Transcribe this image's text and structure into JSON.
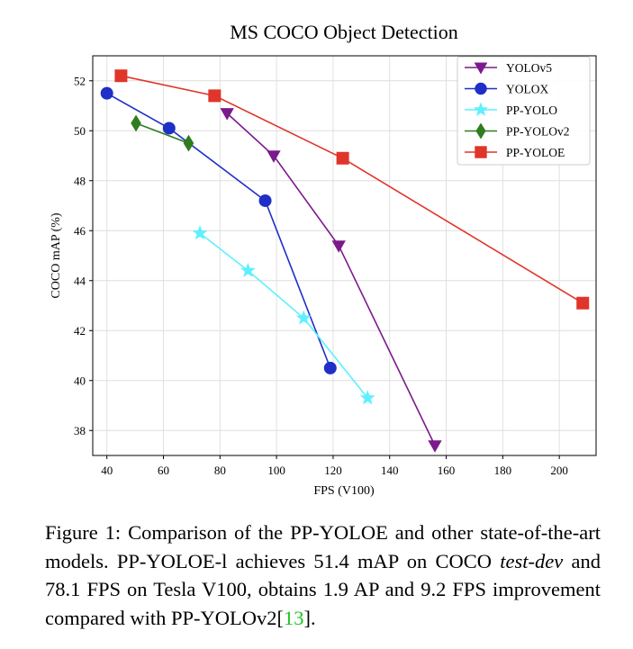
{
  "chart_data": {
    "type": "line",
    "title": "MS COCO Object Detection",
    "xlabel": "FPS (V100)",
    "ylabel": "COCO mAP (%)",
    "xlim": [
      35,
      213
    ],
    "ylim": [
      37,
      53
    ],
    "xticks": [
      40,
      60,
      80,
      100,
      120,
      140,
      160,
      180,
      200
    ],
    "yticks": [
      38,
      40,
      42,
      44,
      46,
      48,
      50,
      52
    ],
    "grid": true,
    "legend_position": "top-right",
    "series": [
      {
        "name": "YOLOv5",
        "color": "#7b1a8c",
        "marker": "triangle-down",
        "x": [
          82.5,
          99,
          122,
          156
        ],
        "y": [
          50.7,
          49.0,
          45.4,
          37.4
        ]
      },
      {
        "name": "YOLOX",
        "color": "#1f2fc8",
        "marker": "circle",
        "x": [
          40,
          62,
          96,
          119
        ],
        "y": [
          51.5,
          50.1,
          47.2,
          40.5
        ]
      },
      {
        "name": "PP-YOLO",
        "color": "#5ef0ff",
        "marker": "star",
        "x": [
          72.9,
          89.9,
          109.6,
          132.2
        ],
        "y": [
          45.9,
          44.4,
          42.5,
          39.3
        ]
      },
      {
        "name": "PP-YOLOv2",
        "color": "#2e7d1e",
        "marker": "diamond",
        "x": [
          50.3,
          68.9
        ],
        "y": [
          50.3,
          49.5
        ]
      },
      {
        "name": "PP-YOLOE",
        "color": "#e0352b",
        "marker": "square",
        "x": [
          45,
          78.1,
          123.4,
          208.3
        ],
        "y": [
          52.2,
          51.4,
          48.9,
          43.1
        ]
      }
    ]
  },
  "caption": {
    "prefix": "Figure 1: Comparison of the PP-YOLOE and other state-of-the-art models. PP-YOLOE-l achieves 51.4 mAP on COCO ",
    "italic": "test-dev",
    "middle": " and 78.1 FPS on Tesla V100, obtains 1.9 AP and 9.2 FPS improvement compared with PP-YOLOv2[",
    "ref": "13",
    "suffix": "]."
  }
}
